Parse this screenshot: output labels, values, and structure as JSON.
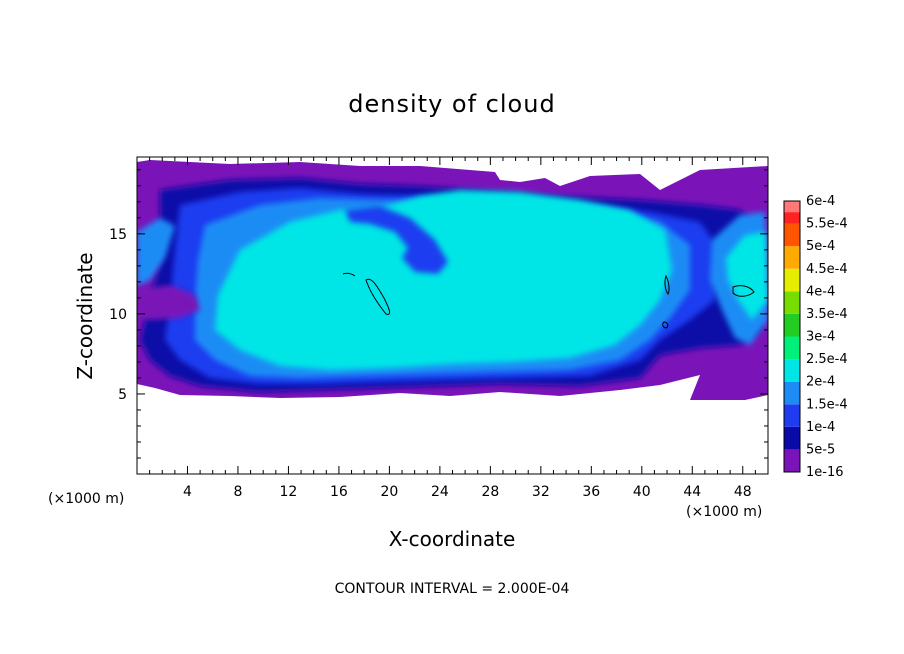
{
  "chart_data": {
    "type": "heatmap",
    "title": "density of cloud",
    "xlabel": "X-coordinate",
    "ylabel": "Z-coordinate",
    "x_unit": "(×1000 m)",
    "x_unit_right": "(×1000 m)",
    "xlim": [
      0,
      50
    ],
    "ylim": [
      0,
      19.8
    ],
    "x_ticks": [
      4,
      8,
      12,
      16,
      20,
      24,
      28,
      32,
      36,
      40,
      44,
      48
    ],
    "y_ticks": [
      5,
      10,
      15
    ],
    "footer": "CONTOUR INTERVAL = 2.000E-04",
    "colorbar": [
      {
        "label": "1e-16",
        "color": "#7a14b8"
      },
      {
        "label": "5e-5",
        "color": "#0a0aa8"
      },
      {
        "label": "1e-4",
        "color": "#1f3cf0"
      },
      {
        "label": "1.5e-4",
        "color": "#1e8cf5"
      },
      {
        "label": "2e-4",
        "color": "#00e6e6"
      },
      {
        "label": "2.5e-4",
        "color": "#00f07a"
      },
      {
        "label": "3e-4",
        "color": "#22cc22"
      },
      {
        "label": "3.5e-4",
        "color": "#77dd00"
      },
      {
        "label": "4e-4",
        "color": "#e6ee00"
      },
      {
        "label": "4.5e-4",
        "color": "#ffaa00"
      },
      {
        "label": "5e-4",
        "color": "#ff5500"
      },
      {
        "label": "5.5e-4",
        "color": "#ff2222"
      },
      {
        "label": "6e-4",
        "color": "#ff7777"
      }
    ]
  }
}
